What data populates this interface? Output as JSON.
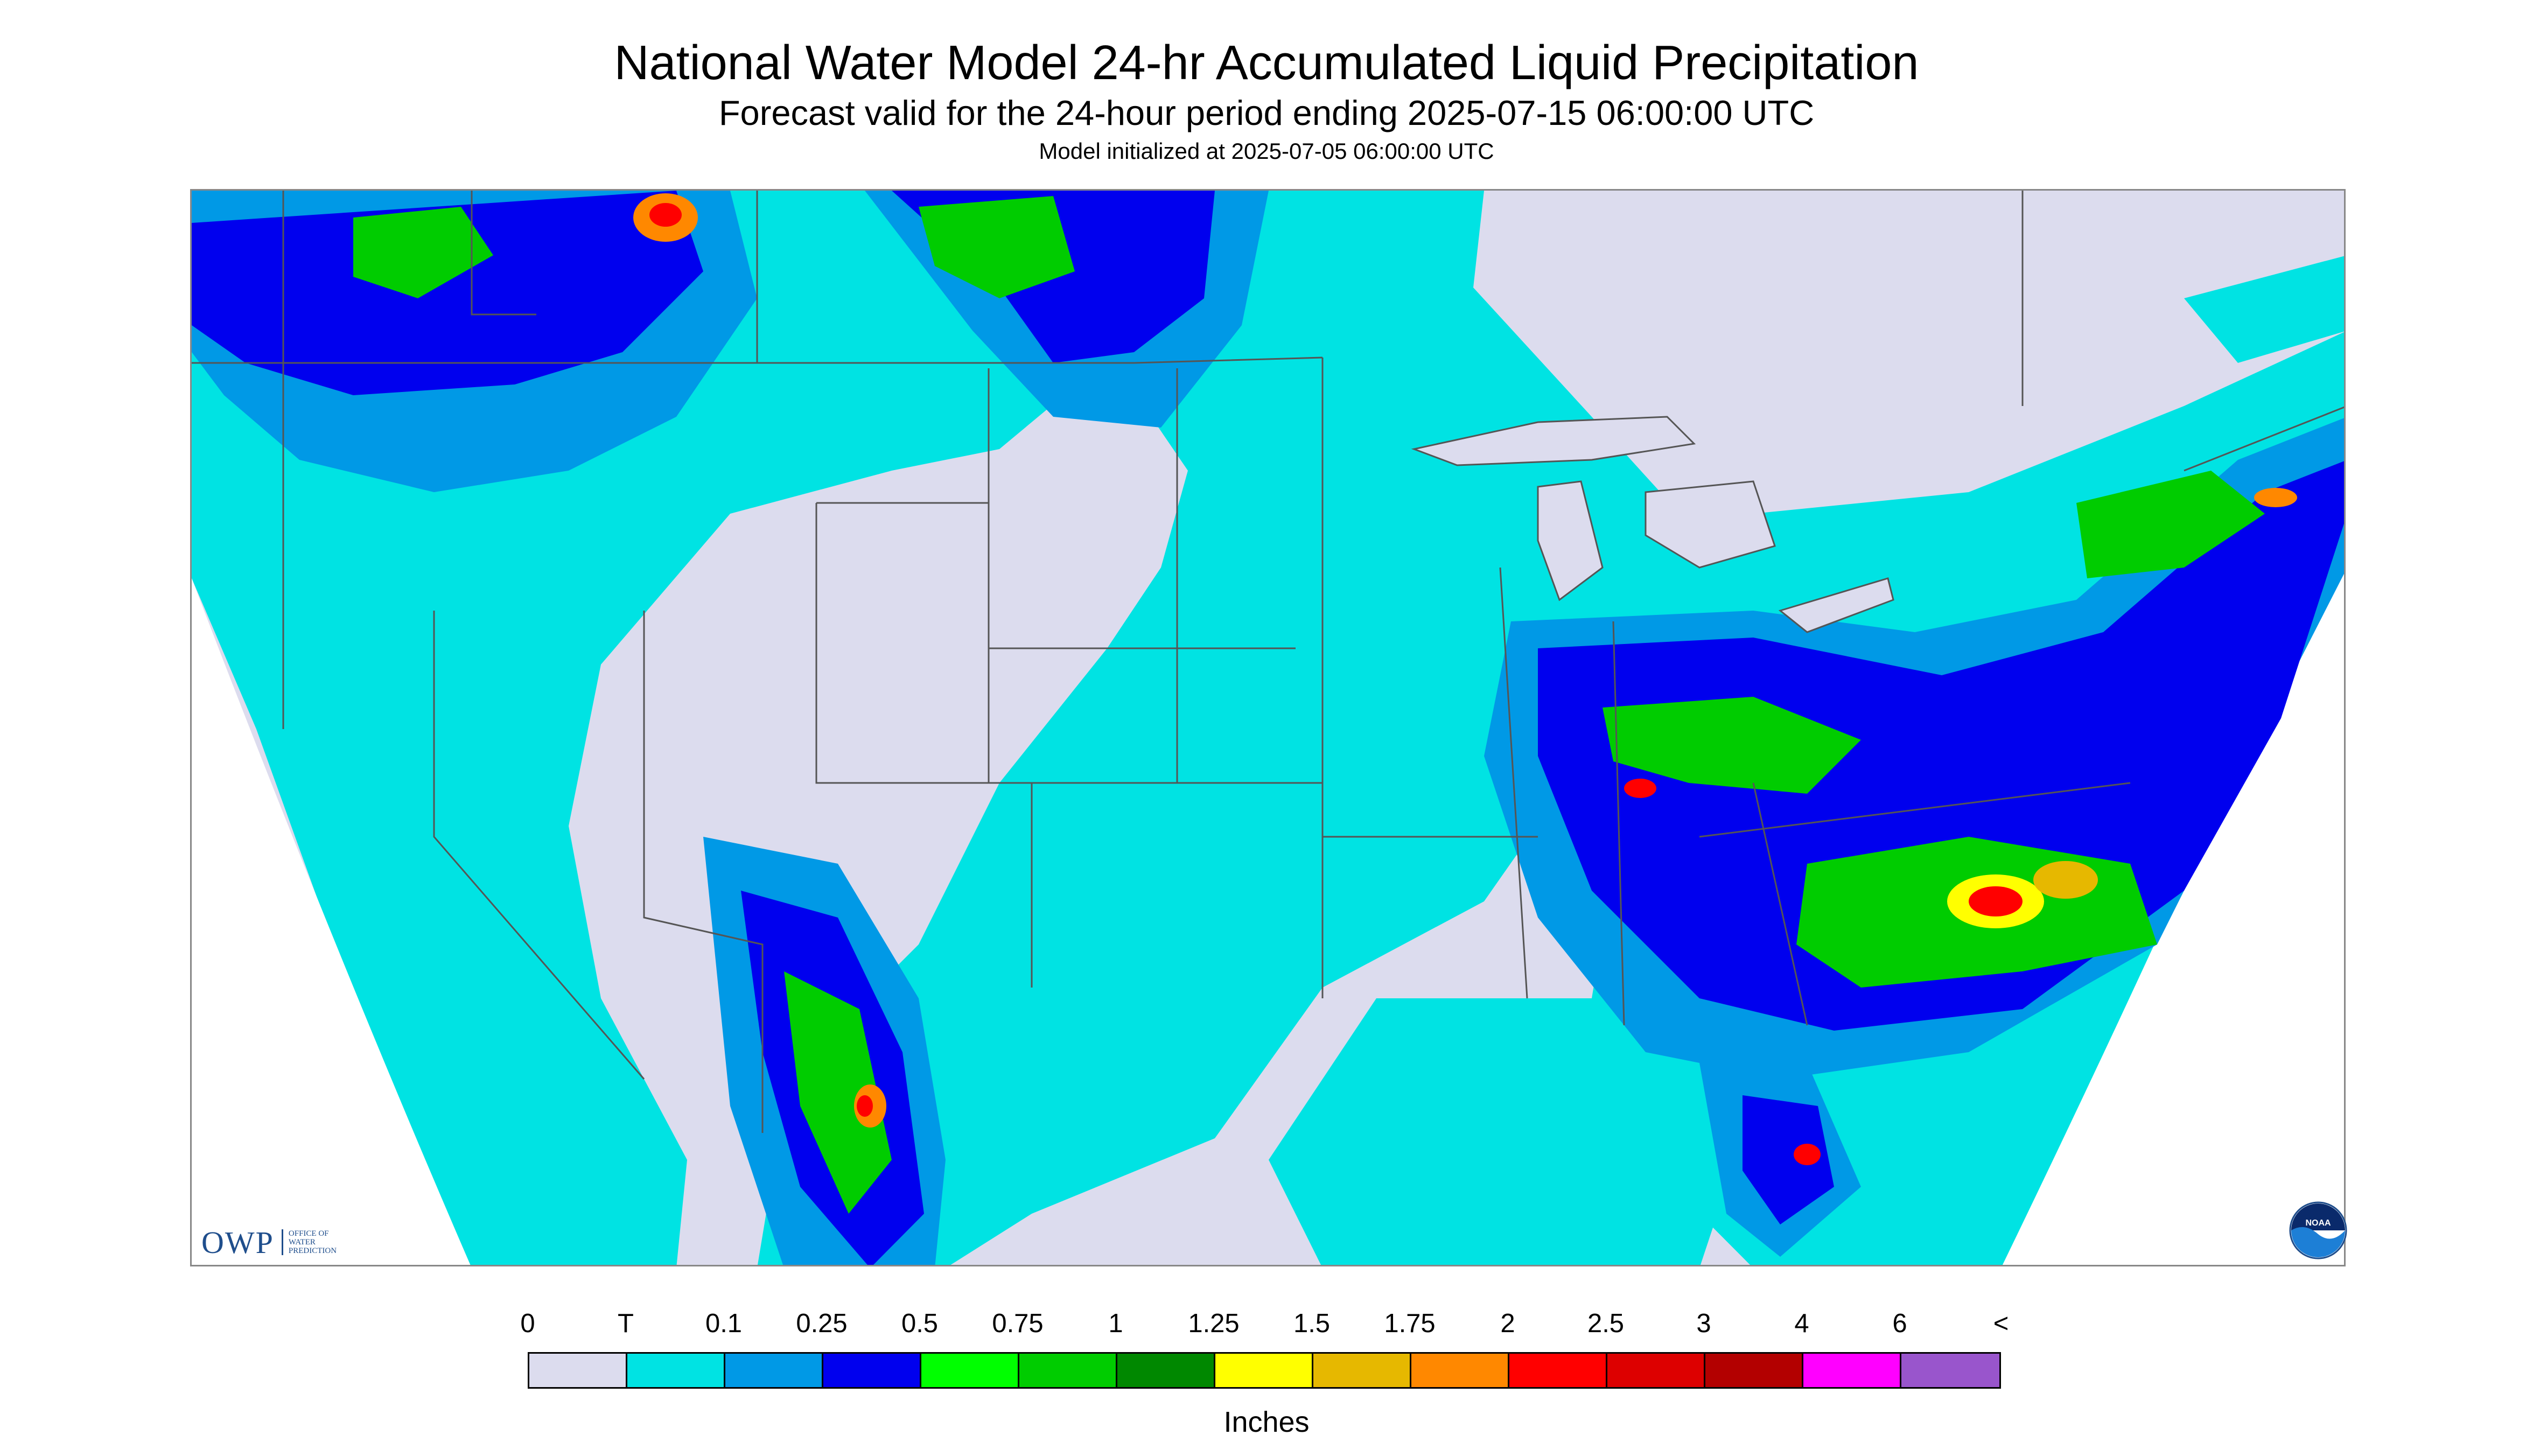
{
  "header": {
    "title": "National Water Model 24-hr Accumulated Liquid Precipitation",
    "subtitle": "Forecast valid for the 24-hour period ending 2025-07-15 06:00:00 UTC",
    "init_line": "Model initialized at 2025-07-05 06:00:00 UTC"
  },
  "logos": {
    "owp": "OWP",
    "owp_sub": "OFFICE OF WATER PREDICTION",
    "noaa": "NOAA"
  },
  "legend": {
    "labels": [
      "0",
      "T",
      "0.1",
      "0.25",
      "0.5",
      "0.75",
      "1",
      "1.25",
      "1.5",
      "1.75",
      "2",
      "2.5",
      "3",
      "4",
      "6",
      "<"
    ],
    "colors": [
      "#dcdcee",
      "#00e3e3",
      "#0099e6",
      "#0000ee",
      "#00ff00",
      "#00cc00",
      "#008800",
      "#ffff00",
      "#e6b800",
      "#ff8800",
      "#ff0000",
      "#dd0000",
      "#b30000",
      "#ff00ff",
      "#9955cc"
    ],
    "units": "Inches"
  },
  "colors": {
    "no_data_fill": "#ffffff",
    "land_no_precip": "#dcdcee",
    "trace": "#00e3e3",
    "border_line": "#555555"
  }
}
